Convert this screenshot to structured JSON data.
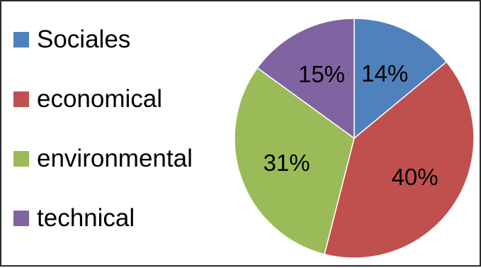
{
  "chart_data": {
    "type": "pie",
    "categories": [
      "Sociales",
      "economical",
      "environmental",
      "technical"
    ],
    "values": [
      14,
      40,
      31,
      15
    ],
    "labels": [
      "14%",
      "40%",
      "31%",
      "15%"
    ],
    "colors": [
      "#4f81bd",
      "#c0504d",
      "#9bbb59",
      "#8064a2"
    ],
    "legend_position": "left"
  }
}
